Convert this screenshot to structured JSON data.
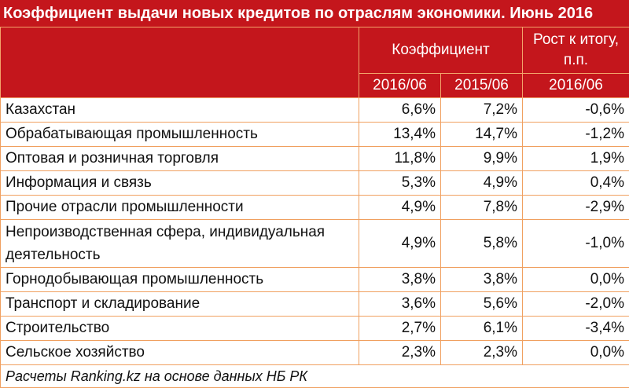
{
  "title": "Коэффициент выдачи новых кредитов по отраслям экономики. Июнь 2016",
  "header": {
    "group_label": "Коэффициент",
    "growth_label": "Рост к итогу, п.п.",
    "col_2016": "2016/06",
    "col_2015": "2015/06",
    "col_growth": "2016/06"
  },
  "colors": {
    "header_bg": "#c4161c",
    "border": "#f0a060"
  },
  "rows": [
    {
      "name": "Казахстан",
      "v2016": "6,6%",
      "v2015": "7,2%",
      "growth": "-0,6%"
    },
    {
      "name": "Обрабатывающая промышленность",
      "v2016": "13,4%",
      "v2015": "14,7%",
      "growth": "-1,2%"
    },
    {
      "name": "Оптовая и розничная торговля",
      "v2016": "11,8%",
      "v2015": "9,9%",
      "growth": "1,9%"
    },
    {
      "name": "Информация и связь",
      "v2016": "5,3%",
      "v2015": "4,9%",
      "growth": "0,4%"
    },
    {
      "name": "Прочие отрасли промышленности",
      "v2016": "4,9%",
      "v2015": "7,8%",
      "growth": "-2,9%"
    },
    {
      "name": "Непроизводственная сфера, индивидуальная деятельность",
      "v2016": "4,9%",
      "v2015": "5,8%",
      "growth": "-1,0%"
    },
    {
      "name": "Горнодобывающая промышленность",
      "v2016": "3,8%",
      "v2015": "3,8%",
      "growth": "0,0%"
    },
    {
      "name": "Транспорт и складирование",
      "v2016": "3,6%",
      "v2015": "5,6%",
      "growth": "-2,0%"
    },
    {
      "name": "Строительство",
      "v2016": "2,7%",
      "v2015": "6,1%",
      "growth": "-3,4%"
    },
    {
      "name": "Сельское хозяйство",
      "v2016": "2,3%",
      "v2015": "2,3%",
      "growth": "0,0%"
    }
  ],
  "footer": "Расчеты Ranking.kz на основе данных НБ РК",
  "chart_data": {
    "type": "table",
    "title": "Коэффициент выдачи новых кредитов по отраслям экономики. Июнь 2016",
    "columns": [
      "2016/06",
      "2015/06",
      "2016/06"
    ],
    "column_groups": [
      "Коэффициент",
      "Коэффициент",
      "Рост к итогу, п.п."
    ],
    "categories": [
      "Казахстан",
      "Обрабатывающая промышленность",
      "Оптовая и розничная торговля",
      "Информация и связь",
      "Прочие отрасли промышленности",
      "Непроизводственная сфера, индивидуальная деятельность",
      "Горнодобывающая промышленность",
      "Транспорт и складирование",
      "Строительство",
      "Сельское хозяйство"
    ],
    "series": [
      {
        "name": "2016/06",
        "values": [
          6.6,
          13.4,
          11.8,
          5.3,
          4.9,
          4.9,
          3.8,
          3.6,
          2.7,
          2.3
        ]
      },
      {
        "name": "2015/06",
        "values": [
          7.2,
          14.7,
          9.9,
          4.9,
          7.8,
          5.8,
          3.8,
          5.6,
          6.1,
          2.3
        ]
      },
      {
        "name": "2016/06",
        "values": [
          -0.6,
          -1.2,
          1.9,
          0.4,
          -2.9,
          -1.0,
          0.0,
          -2.0,
          -3.4,
          0.0
        ]
      }
    ]
  }
}
